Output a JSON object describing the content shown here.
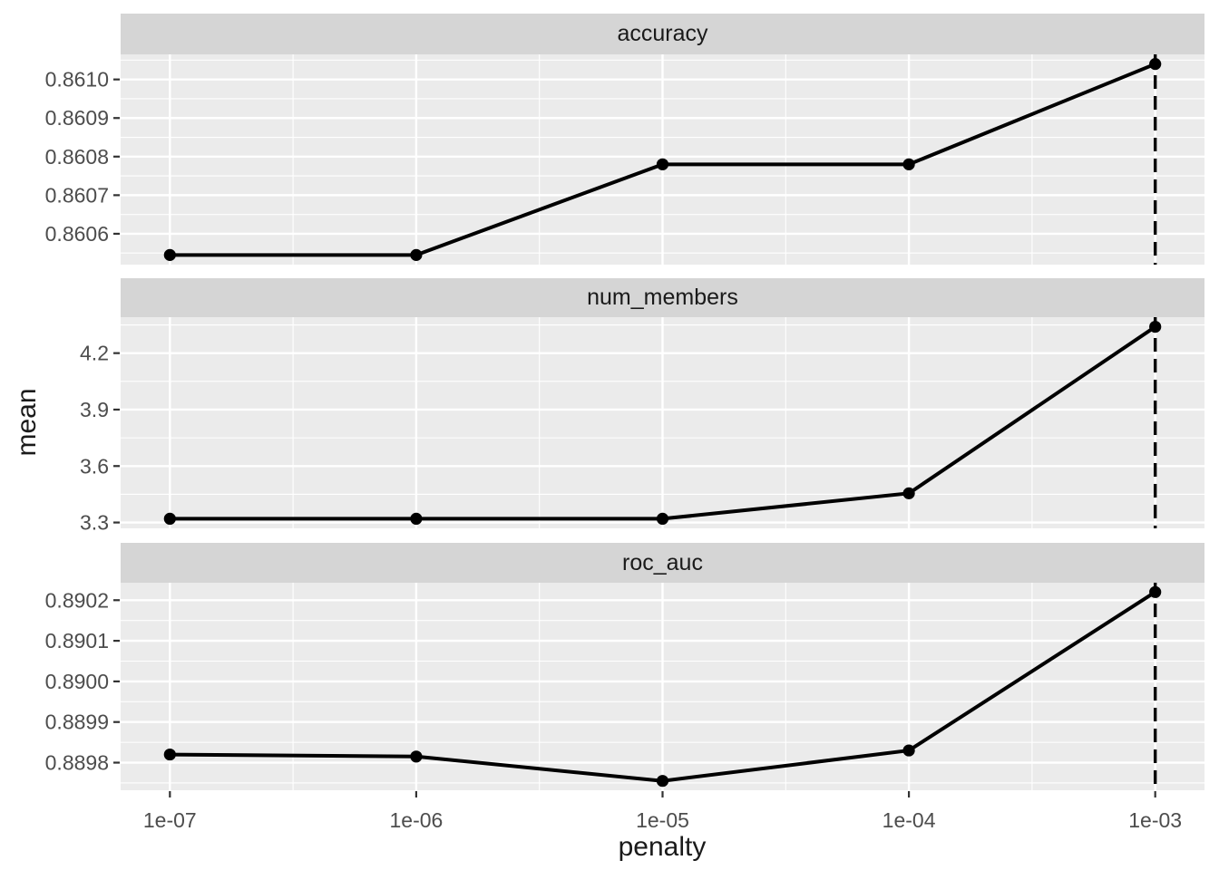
{
  "chart_data": {
    "type": "line",
    "xlabel": "penalty",
    "ylabel": "mean",
    "x_scale": "log10",
    "x_tick_labels": [
      "1e-07",
      "1e-06",
      "1e-05",
      "1e-04",
      "1e-03"
    ],
    "x_log": [
      -7,
      -6,
      -5,
      -4,
      -3
    ],
    "xlim_log": [
      -7.2,
      -2.8
    ],
    "x_minor_log": [
      -6.5,
      -5.5,
      -4.5,
      -3.5
    ],
    "vline_x_label": "1e-03",
    "vline_x_log": -3,
    "legend": "none",
    "grid": "on",
    "facets": [
      {
        "title": "accuracy",
        "x": [
          "1e-07",
          "1e-06",
          "1e-05",
          "1e-04",
          "1e-03"
        ],
        "values": [
          0.860545,
          0.860545,
          0.86078,
          0.86078,
          0.86104
        ],
        "y_ticks": [
          0.8606,
          0.8607,
          0.8608,
          0.8609,
          0.861
        ],
        "y_tick_labels": [
          "0.8606",
          "0.8607",
          "0.8608",
          "0.8609",
          "0.8610"
        ],
        "ylim": [
          0.86052,
          0.861065
        ]
      },
      {
        "title": "num_members",
        "x": [
          "1e-07",
          "1e-06",
          "1e-05",
          "1e-04",
          "1e-03"
        ],
        "values": [
          3.32,
          3.32,
          3.32,
          3.455,
          4.34
        ],
        "y_ticks": [
          3.3,
          3.6,
          3.9,
          4.2
        ],
        "y_tick_labels": [
          "3.3",
          "3.6",
          "3.9",
          "4.2"
        ],
        "ylim": [
          3.269,
          4.391
        ]
      },
      {
        "title": "roc_auc",
        "x": [
          "1e-07",
          "1e-06",
          "1e-05",
          "1e-04",
          "1e-03"
        ],
        "values": [
          0.88982,
          0.889815,
          0.889755,
          0.88983,
          0.89022
        ],
        "y_ticks": [
          0.8898,
          0.8899,
          0.89,
          0.8901,
          0.8902
        ],
        "y_tick_labels": [
          "0.8898",
          "0.8899",
          "0.8900",
          "0.8901",
          "0.8902"
        ],
        "ylim": [
          0.889732,
          0.890243
        ]
      }
    ],
    "colors": {
      "panel_bg": "#EBEBEB",
      "strip_bg": "#D5D5D5",
      "grid": "#FFFFFF",
      "line": "#000000",
      "point": "#000000",
      "vline": "#000000",
      "axis_text": "#4D4D4D",
      "tick_mark": "#333333",
      "title_text": "#1A1A1A"
    }
  }
}
